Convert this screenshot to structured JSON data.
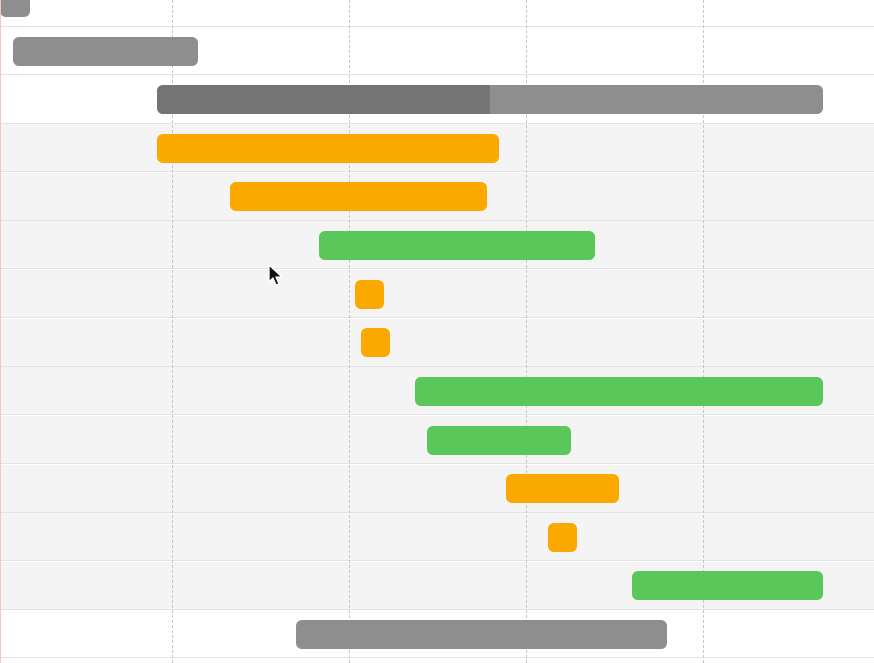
{
  "colors": {
    "summary": "#8e8e8e",
    "summary_progress": "#747474",
    "orange": "#fba900",
    "green": "#59c75a",
    "row_alt": "#f4f4f4",
    "grid": "#c7c7c7"
  },
  "tasks": [
    {
      "kind": "summary",
      "color": "#8e8e8e"
    },
    {
      "kind": "summary",
      "color": "#8e8e8e"
    },
    {
      "kind": "summary",
      "color": "#8e8e8e",
      "progress_percent": 50,
      "progress_color": "#747474"
    },
    {
      "kind": "task",
      "color": "#fba900"
    },
    {
      "kind": "task",
      "color": "#fba900"
    },
    {
      "kind": "task",
      "color": "#59c75a"
    },
    {
      "kind": "task",
      "color": "#fba900"
    },
    {
      "kind": "task",
      "color": "#fba900"
    },
    {
      "kind": "task",
      "color": "#59c75a"
    },
    {
      "kind": "task",
      "color": "#59c75a"
    },
    {
      "kind": "task",
      "color": "#fba900"
    },
    {
      "kind": "task",
      "color": "#fba900"
    },
    {
      "kind": "task",
      "color": "#59c75a"
    },
    {
      "kind": "summary",
      "color": "#8e8e8e"
    }
  ],
  "cursor": {
    "icon": "arrow-cursor-icon"
  }
}
